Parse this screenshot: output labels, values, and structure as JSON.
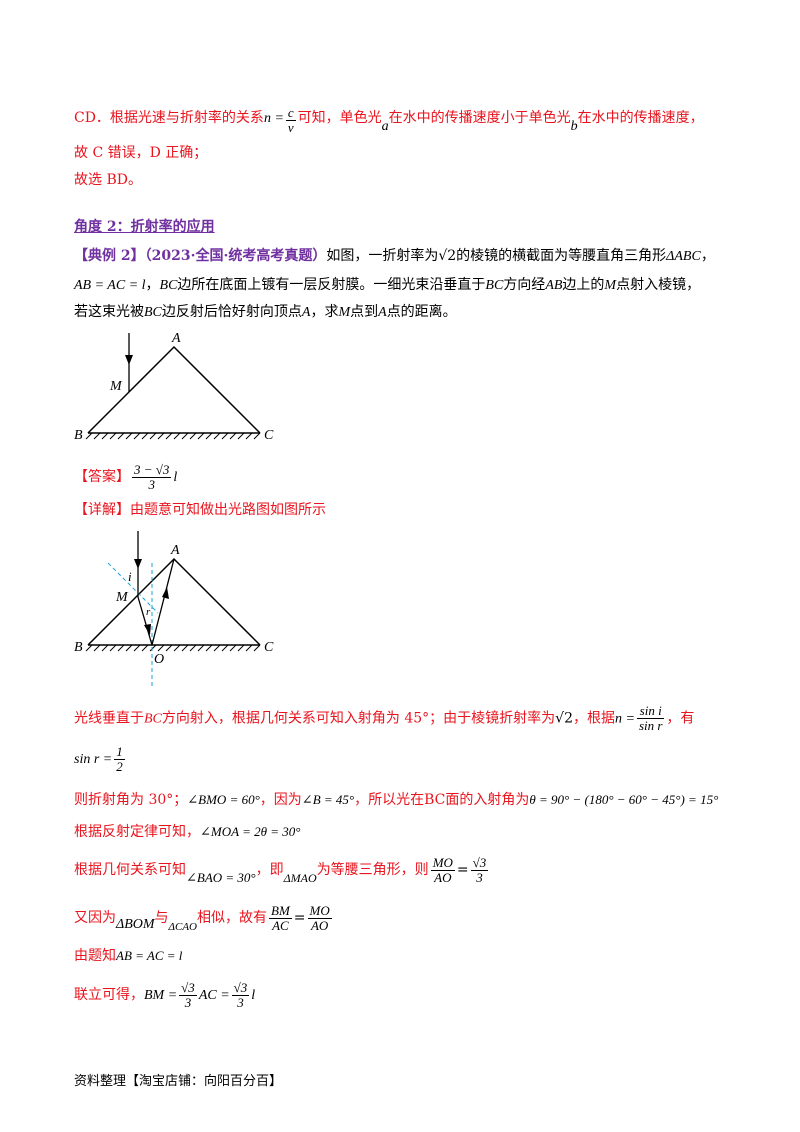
{
  "top": {
    "line1_prefix": "CD．根据光速与折射率的关系",
    "line1_formula_lhs": "n =",
    "line1_num": "c",
    "line1_den": "v",
    "line1_mid": "可知，单色光",
    "var_a": "a",
    "line1_mid2": "在水中的传播速度小于单色光",
    "var_b": "b",
    "line1_end": "在水中的传播速度，",
    "line2": "故 C 错误，D 正确；",
    "line3": "故选 BD。"
  },
  "section": {
    "heading": "角度 2：折射率的应用"
  },
  "problem": {
    "tag": "【典例 2】（2023·全国·统考高考真题）",
    "p1a": "如图，一折射率为",
    "p1_sqrt": "√2",
    "p1b": "的棱镜的横截面为等腰直角三角形",
    "p1_tri": "ΔABC",
    "p1c": "，",
    "p2_eq": "AB = AC = l",
    "p2a": "，",
    "p2_bc": "BC",
    "p2b": "边所在底面上镀有一层反射膜。一细光束沿垂直于",
    "p2_bc2": "BC",
    "p2c": "方向经",
    "p2_ab": "AB",
    "p2d": "边上的",
    "p2_m": "M",
    "p2e": "点射入棱镜，",
    "p3a": "若这束光被",
    "p3_bc": "BC",
    "p3b": "边反射后恰好射向顶点",
    "p3_a": "A",
    "p3c": "，求",
    "p3_m": "M",
    "p3d": "点到",
    "p3_a2": "A",
    "p3e": "点的距离。"
  },
  "figure1": {
    "labels": [
      "A",
      "M",
      "B",
      "C"
    ]
  },
  "answer": {
    "tag": "【答案】",
    "num": "3 − √3",
    "den": "3",
    "suffix": "l"
  },
  "detail": {
    "tag": "【详解】",
    "text": "由题意可知做出光路图如图所示"
  },
  "figure2": {
    "labels": [
      "A",
      "i",
      "M",
      "r",
      "B",
      "O",
      "C"
    ]
  },
  "solution": {
    "s1a": "光线垂直于",
    "s1_bc": "BC",
    "s1b": "方向射入，根据几何关系可知入射角为 45°；由于棱镜折射率为",
    "s1_sqrt": "√2",
    "s1c": "，根据",
    "s1_n": "n =",
    "s1_num": "sin i",
    "s1_den": "sin r",
    "s1d": "，有",
    "s2_lhs": "sin r =",
    "s2_num": "1",
    "s2_den": "2",
    "s3a": "则折射角为 30°；",
    "s3_ang": "∠BMO = 60°",
    "s3b": "，因为",
    "s3_b": "∠B = 45°",
    "s3c": "，所以光在BC面的入射角为",
    "s3_eq": "θ = 90° − (180° − 60° − 45°) = 15°",
    "s4a": "根据反射定律可知，",
    "s4_eq": "∠MOA = 2θ = 30°",
    "s5a": "根据几何关系可知",
    "s5_eq": "∠BAO = 30°",
    "s5b": "，即",
    "s5_tri": "ΔMAO",
    "s5c": "为等腰三角形，则",
    "s5_num": "MO",
    "s5_den": "AO",
    "s5_eq2": "=",
    "s5_rnum": "√3",
    "s5_rden": "3",
    "s6a": "又因为",
    "s6_tri1": "ΔBOM",
    "s6b": "与",
    "s6_tri2": "ΔCAO",
    "s6c": "相似，故有",
    "s6_num1": "BM",
    "s6_den1": "AC",
    "s6_num2": "MO",
    "s6_den2": "AO",
    "s7a": "由题知",
    "s7_eq": "AB = AC = l",
    "s8a": "联立可得，",
    "s8_lhs": "BM =",
    "s8_num": "√3",
    "s8_den": "3",
    "s8_mid": "AC =",
    "s8_num2": "√3",
    "s8_den2": "3",
    "s8_end": "l"
  },
  "footer": {
    "text": "资料整理【淘宝店铺：向阳百分百】"
  },
  "colors": {
    "red": "#e8141e",
    "purple": "#7030a0",
    "dashed": "#1aa3d6"
  }
}
